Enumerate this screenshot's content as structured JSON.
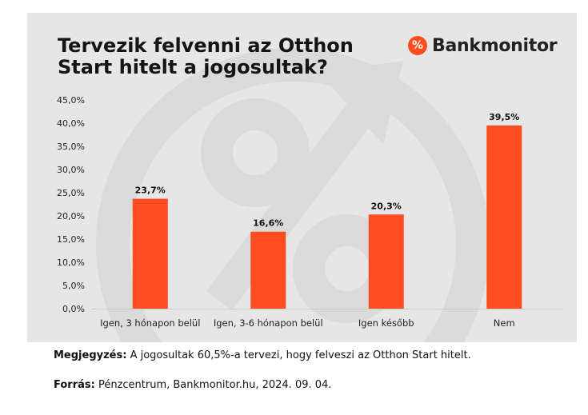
{
  "brand": {
    "logo_symbol": "%",
    "name": "Bankmonitor",
    "accent_color": "#ff4d1f"
  },
  "chart_data": {
    "type": "bar",
    "title": "Tervezik felvenni az Otthon Start hitelt a jogosultak?",
    "categories": [
      "Igen, 3 hónapon belül",
      "Igen, 3-6 hónapon belül",
      "Igen később",
      "Nem"
    ],
    "values": [
      23.7,
      16.6,
      20.3,
      39.5
    ],
    "value_labels": [
      "23,7%",
      "16,6%",
      "20,3%",
      "39,5%"
    ],
    "y_ticks": [
      "0,0%",
      "5,0%",
      "10,0%",
      "15,0%",
      "20,0%",
      "25,0%",
      "30,0%",
      "35,0%",
      "40,0%",
      "45,0%"
    ],
    "ylim": [
      0,
      45
    ],
    "xlabel": "",
    "ylabel": "",
    "grid": false,
    "bar_color": "#ff4d1f",
    "background_color": "#e6e6e6"
  },
  "notes": {
    "note_label": "Megjegyzés:",
    "note_text": " A jogosultak 60,5%-a tervezi, hogy felveszi az Otthon Start hitelt.",
    "source_label": "Forrás:",
    "source_text": " Pénzcentrum, Bankmonitor.hu, 2024. 09. 04."
  }
}
